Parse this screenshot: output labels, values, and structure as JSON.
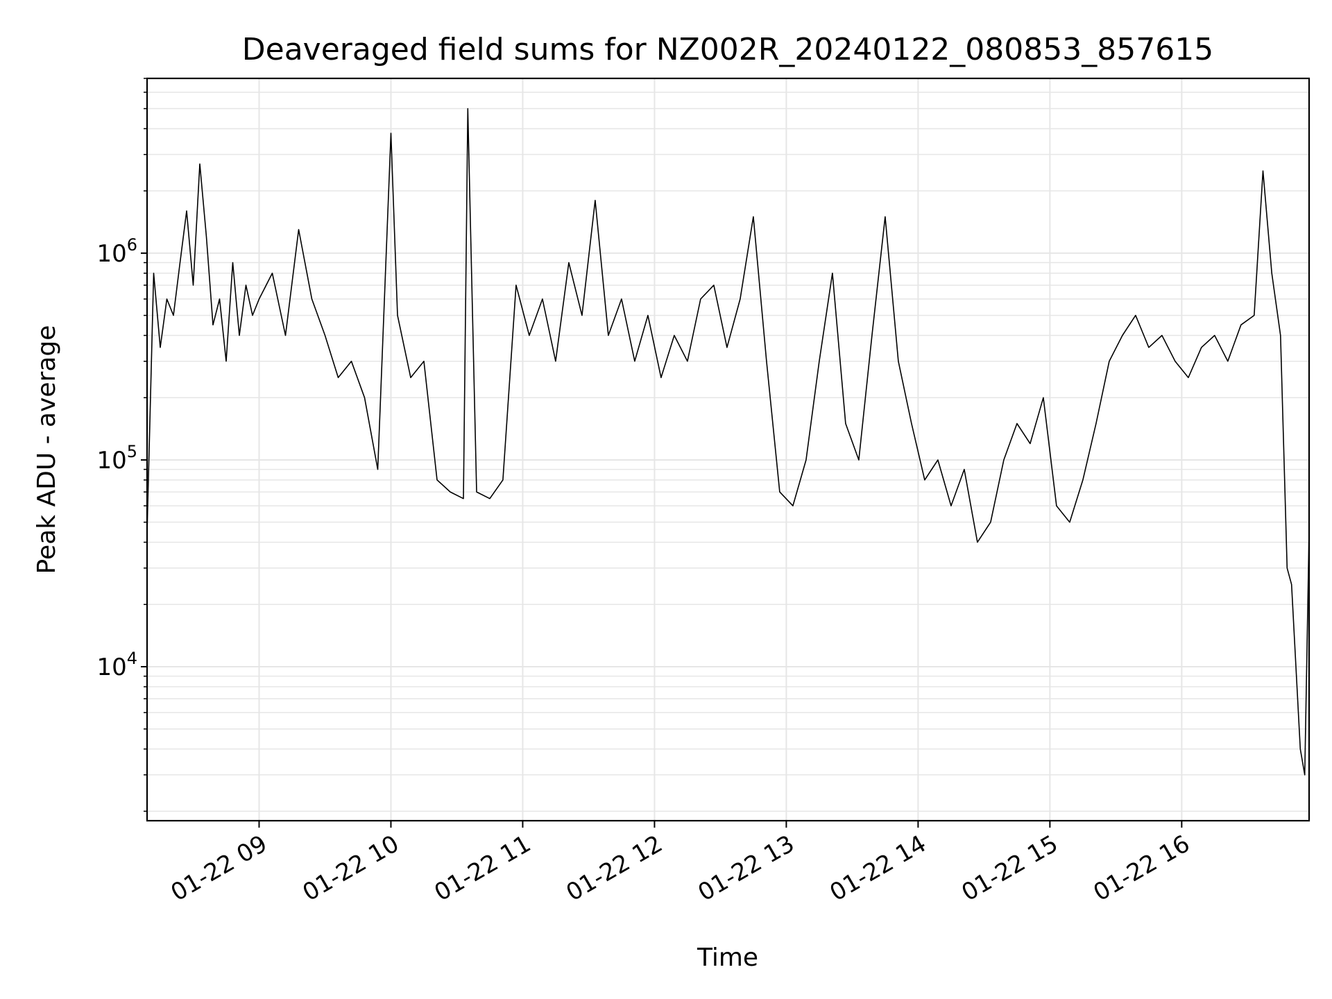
{
  "chart_data": {
    "type": "line",
    "title": "Deaveraged field sums for NZ002R_20240122_080853_857615",
    "xlabel": "Time",
    "ylabel": "Peak ADU - average",
    "yscale": "log",
    "ylim": [
      1800,
      7000000
    ],
    "xlim": [
      "01-22 08:09",
      "01-22 16:58"
    ],
    "grid": true,
    "line_color": "#000000",
    "grid_color": "#e6e6e6",
    "x_ticks": [
      {
        "value": "01-22 09:00",
        "label": "01-22 09"
      },
      {
        "value": "01-22 10:00",
        "label": "01-22 10"
      },
      {
        "value": "01-22 11:00",
        "label": "01-22 11"
      },
      {
        "value": "01-22 12:00",
        "label": "01-22 12"
      },
      {
        "value": "01-22 13:00",
        "label": "01-22 13"
      },
      {
        "value": "01-22 14:00",
        "label": "01-22 14"
      },
      {
        "value": "01-22 15:00",
        "label": "01-22 15"
      },
      {
        "value": "01-22 16:00",
        "label": "01-22 16"
      }
    ],
    "y_ticks": [
      {
        "value": 10000,
        "base": "10",
        "exp": "4"
      },
      {
        "value": 100000,
        "base": "10",
        "exp": "5"
      },
      {
        "value": 1000000,
        "base": "10",
        "exp": "6"
      }
    ],
    "series": [
      {
        "x": [
          "01-22 08:09",
          "01-22 08:12",
          "01-22 08:15",
          "01-22 08:18",
          "01-22 08:21",
          "01-22 08:24",
          "01-22 08:27",
          "01-22 08:30",
          "01-22 08:33",
          "01-22 08:36",
          "01-22 08:39",
          "01-22 08:42",
          "01-22 08:45",
          "01-22 08:48",
          "01-22 08:51",
          "01-22 08:54",
          "01-22 08:57",
          "01-22 09:00",
          "01-22 09:06",
          "01-22 09:12",
          "01-22 09:18",
          "01-22 09:24",
          "01-22 09:30",
          "01-22 09:36",
          "01-22 09:42",
          "01-22 09:48",
          "01-22 09:54",
          "01-22 10:00",
          "01-22 10:03",
          "01-22 10:09",
          "01-22 10:15",
          "01-22 10:21",
          "01-22 10:27",
          "01-22 10:33",
          "01-22 10:35",
          "01-22 10:39",
          "01-22 10:45",
          "01-22 10:51",
          "01-22 10:57",
          "01-22 11:03",
          "01-22 11:09",
          "01-22 11:15",
          "01-22 11:21",
          "01-22 11:27",
          "01-22 11:33",
          "01-22 11:39",
          "01-22 11:45",
          "01-22 11:51",
          "01-22 11:57",
          "01-22 12:03",
          "01-22 12:09",
          "01-22 12:15",
          "01-22 12:21",
          "01-22 12:27",
          "01-22 12:33",
          "01-22 12:39",
          "01-22 12:45",
          "01-22 12:51",
          "01-22 12:57",
          "01-22 13:03",
          "01-22 13:09",
          "01-22 13:15",
          "01-22 13:21",
          "01-22 13:27",
          "01-22 13:33",
          "01-22 13:39",
          "01-22 13:45",
          "01-22 13:51",
          "01-22 13:57",
          "01-22 14:03",
          "01-22 14:09",
          "01-22 14:15",
          "01-22 14:21",
          "01-22 14:27",
          "01-22 14:33",
          "01-22 14:39",
          "01-22 14:45",
          "01-22 14:51",
          "01-22 14:57",
          "01-22 15:03",
          "01-22 15:09",
          "01-22 15:15",
          "01-22 15:21",
          "01-22 15:27",
          "01-22 15:33",
          "01-22 15:39",
          "01-22 15:45",
          "01-22 15:51",
          "01-22 15:57",
          "01-22 16:03",
          "01-22 16:09",
          "01-22 16:15",
          "01-22 16:21",
          "01-22 16:27",
          "01-22 16:33",
          "01-22 16:37",
          "01-22 16:41",
          "01-22 16:45",
          "01-22 16:48",
          "01-22 16:50",
          "01-22 16:52",
          "01-22 16:54",
          "01-22 16:56",
          "01-22 16:58"
        ],
        "y": [
          45000,
          800000,
          350000,
          600000,
          500000,
          900000,
          1600000,
          700000,
          2700000,
          1200000,
          450000,
          600000,
          300000,
          900000,
          400000,
          700000,
          500000,
          600000,
          800000,
          400000,
          1300000,
          600000,
          400000,
          250000,
          300000,
          200000,
          90000,
          3800000,
          500000,
          250000,
          300000,
          80000,
          70000,
          65000,
          5000000,
          70000,
          65000,
          80000,
          700000,
          400000,
          600000,
          300000,
          900000,
          500000,
          1800000,
          400000,
          600000,
          300000,
          500000,
          250000,
          400000,
          300000,
          600000,
          700000,
          350000,
          600000,
          1500000,
          300000,
          70000,
          60000,
          100000,
          300000,
          800000,
          150000,
          100000,
          400000,
          1500000,
          300000,
          150000,
          80000,
          100000,
          60000,
          90000,
          40000,
          50000,
          100000,
          150000,
          120000,
          200000,
          60000,
          50000,
          80000,
          150000,
          300000,
          400000,
          500000,
          350000,
          400000,
          300000,
          250000,
          350000,
          400000,
          300000,
          450000,
          500000,
          2500000,
          800000,
          400000,
          30000,
          25000,
          10000,
          4000,
          3000,
          45000
        ]
      }
    ]
  }
}
